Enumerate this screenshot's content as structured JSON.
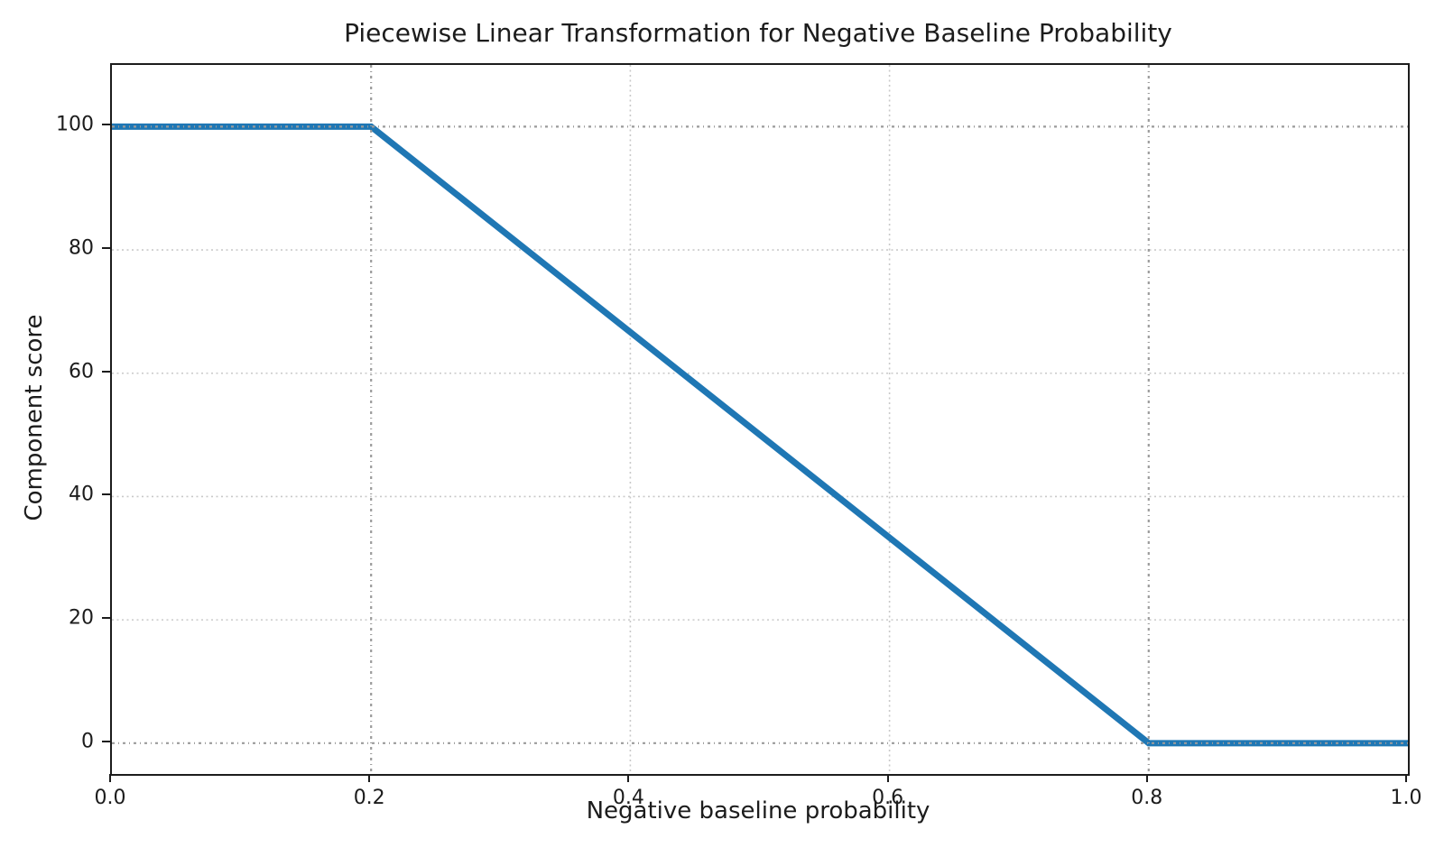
{
  "chart_data": {
    "type": "line",
    "title": "Piecewise Linear Transformation for Negative Baseline Probability",
    "xlabel": "Negative baseline probability",
    "ylabel": "Component score",
    "xlim": [
      0.0,
      1.0
    ],
    "ylim": [
      -5,
      110
    ],
    "grid": true,
    "legend": "none",
    "series": [
      {
        "name": "component-score-transform",
        "color": "#1f77b4",
        "line_width": 7,
        "x": [
          0.0,
          0.2,
          0.8,
          1.0
        ],
        "y": [
          100,
          100,
          0,
          0
        ]
      }
    ],
    "xticks": {
      "values": [
        0.0,
        0.2,
        0.4,
        0.6,
        0.8,
        1.0
      ],
      "labels": [
        "0.0",
        "0.2",
        "0.4",
        "0.6",
        "0.8",
        "1.0"
      ]
    },
    "yticks": {
      "values": [
        0,
        20,
        40,
        60,
        80,
        100
      ],
      "labels": [
        "0",
        "20",
        "40",
        "60",
        "80",
        "100"
      ]
    },
    "minor_gridlines": {
      "x": [
        0.4,
        0.6
      ],
      "y": [
        20,
        40,
        60,
        80
      ],
      "color": "#c9c9c9"
    },
    "reference_lines": {
      "x": [
        0.2,
        0.8
      ],
      "y": [
        0,
        100
      ],
      "color": "#9b9b9b"
    },
    "breakpoints": {
      "flat_high_until_x": 0.2,
      "flat_low_from_x": 0.8,
      "high_score": 100,
      "low_score": 0
    }
  },
  "colors": {
    "line": "#1f77b4",
    "spine": "#1c1c1c",
    "text": "#1c1c1c",
    "minor_grid": "#c9c9c9",
    "reference_grid": "#9b9b9b",
    "background": "#ffffff"
  }
}
